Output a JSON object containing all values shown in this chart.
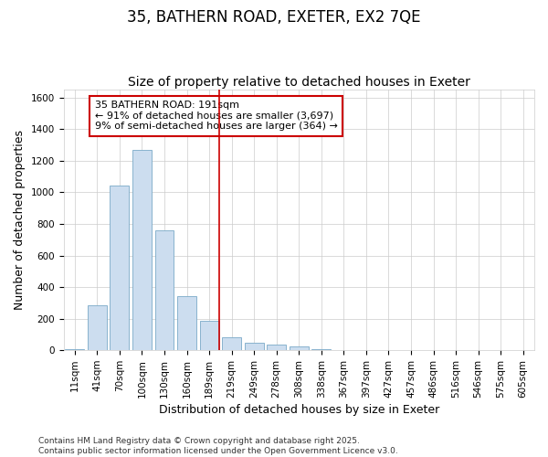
{
  "title": "35, BATHERN ROAD, EXETER, EX2 7QE",
  "subtitle": "Size of property relative to detached houses in Exeter",
  "xlabel": "Distribution of detached houses by size in Exeter",
  "ylabel": "Number of detached properties",
  "categories": [
    "11sqm",
    "41sqm",
    "70sqm",
    "100sqm",
    "130sqm",
    "160sqm",
    "189sqm",
    "219sqm",
    "249sqm",
    "278sqm",
    "308sqm",
    "338sqm",
    "367sqm",
    "397sqm",
    "427sqm",
    "457sqm",
    "486sqm",
    "516sqm",
    "546sqm",
    "575sqm",
    "605sqm"
  ],
  "values": [
    5,
    285,
    1045,
    1270,
    760,
    340,
    185,
    80,
    48,
    35,
    22,
    7,
    3,
    0,
    0,
    0,
    0,
    0,
    0,
    0,
    0
  ],
  "bar_color": "#ccddef",
  "bar_edge_color": "#7aaac8",
  "vline_x_index": 6,
  "vline_color": "#cc0000",
  "annotation_text": "35 BATHERN ROAD: 191sqm\n← 91% of detached houses are smaller (3,697)\n9% of semi-detached houses are larger (364) →",
  "annotation_box_color": "#ffffff",
  "annotation_box_edge_color": "#cc0000",
  "ylim": [
    0,
    1650
  ],
  "yticks": [
    0,
    200,
    400,
    600,
    800,
    1000,
    1200,
    1400,
    1600
  ],
  "footer_line1": "Contains HM Land Registry data © Crown copyright and database right 2025.",
  "footer_line2": "Contains public sector information licensed under the Open Government Licence v3.0.",
  "bg_color": "#ffffff",
  "grid_color": "#cccccc",
  "title_fontsize": 12,
  "subtitle_fontsize": 10,
  "label_fontsize": 9,
  "tick_fontsize": 7.5,
  "annotation_fontsize": 8,
  "footer_fontsize": 6.5
}
